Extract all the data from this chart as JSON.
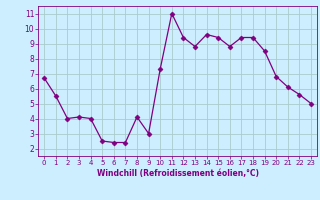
{
  "x": [
    0,
    1,
    2,
    3,
    4,
    5,
    6,
    7,
    8,
    9,
    10,
    11,
    12,
    13,
    14,
    15,
    16,
    17,
    18,
    19,
    20,
    21,
    22,
    23
  ],
  "y": [
    6.7,
    5.5,
    4.0,
    4.1,
    4.0,
    2.5,
    2.4,
    2.4,
    4.1,
    3.0,
    7.3,
    11.0,
    9.4,
    8.8,
    9.6,
    9.4,
    8.8,
    9.4,
    9.4,
    8.5,
    6.8,
    6.1,
    5.6,
    5.0
  ],
  "line_color": "#800080",
  "marker": "D",
  "marker_size": 2.5,
  "xlabel": "Windchill (Refroidissement éolien,°C)",
  "xlim": [
    -0.5,
    23.5
  ],
  "ylim": [
    1.5,
    11.5
  ],
  "yticks": [
    2,
    3,
    4,
    5,
    6,
    7,
    8,
    9,
    10,
    11
  ],
  "xticks": [
    0,
    1,
    2,
    3,
    4,
    5,
    6,
    7,
    8,
    9,
    10,
    11,
    12,
    13,
    14,
    15,
    16,
    17,
    18,
    19,
    20,
    21,
    22,
    23
  ],
  "bg_color": "#cceeff",
  "grid_color": "#aacccc",
  "tick_color": "#800080",
  "label_color": "#800080"
}
